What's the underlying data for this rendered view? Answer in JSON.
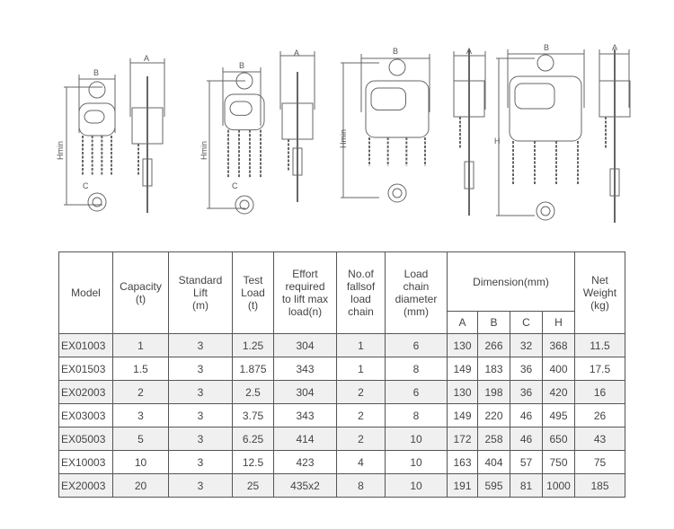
{
  "diagram_labels": {
    "A": "A",
    "B": "B",
    "Hmin": "Hmin",
    "H": "H",
    "C": "C"
  },
  "table": {
    "headers": {
      "model": "Model",
      "capacity": "Capacity\n(t)",
      "lift": "Standard\nLift\n(m)",
      "test": "Test\nLoad\n(t)",
      "effort": "Effort\nrequired\nto lift max\nload(n)",
      "falls": "No.of\nfallsof\nload\nchain",
      "diameter": "Load\nchain\ndiameter\n(mm)",
      "dimension": "Dimension(mm)",
      "weight": "Net\nWeight\n(kg)",
      "sub": [
        "A",
        "B",
        "C",
        "H"
      ]
    },
    "rows": [
      [
        "EX01003",
        "1",
        "3",
        "1.25",
        "304",
        "1",
        "6",
        "130",
        "266",
        "32",
        "368",
        "11.5"
      ],
      [
        "EX01503",
        "1.5",
        "3",
        "1.875",
        "343",
        "1",
        "8",
        "149",
        "183",
        "36",
        "400",
        "17.5"
      ],
      [
        "EX02003",
        "2",
        "3",
        "2.5",
        "304",
        "2",
        "6",
        "130",
        "198",
        "36",
        "420",
        "16"
      ],
      [
        "EX03003",
        "3",
        "3",
        "3.75",
        "343",
        "2",
        "8",
        "149",
        "220",
        "46",
        "495",
        "26"
      ],
      [
        "EX05003",
        "5",
        "3",
        "6.25",
        "414",
        "2",
        "10",
        "172",
        "258",
        "46",
        "650",
        "43"
      ],
      [
        "EX10003",
        "10",
        "3",
        "12.5",
        "423",
        "4",
        "10",
        "163",
        "404",
        "57",
        "750",
        "75"
      ],
      [
        "EX20003",
        "20",
        "3",
        "25",
        "435x2",
        "8",
        "10",
        "191",
        "595",
        "81",
        "1000",
        "185"
      ]
    ]
  }
}
